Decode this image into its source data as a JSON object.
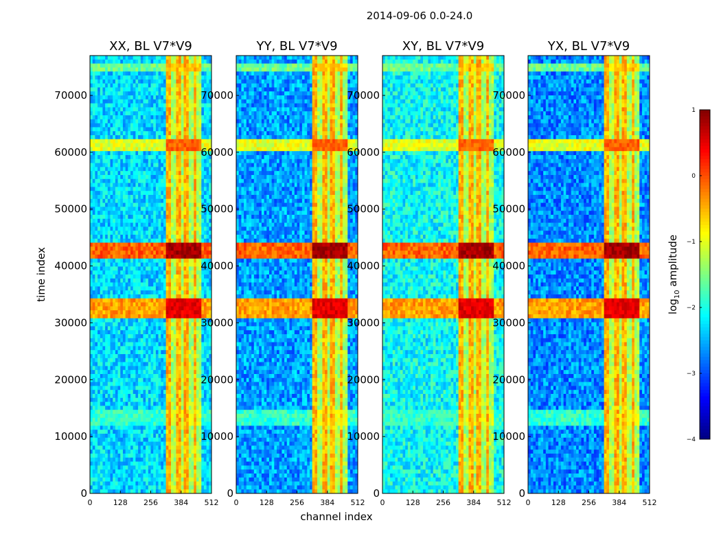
{
  "chart_data": {
    "type": "heatmap",
    "suptitle": "2014-09-06 0.0-24.0",
    "xlabel": "channel index",
    "ylabel": "time index",
    "x_range": [
      0,
      512
    ],
    "y_range": [
      0,
      77000
    ],
    "xticks": [
      0,
      128,
      256,
      384,
      512
    ],
    "yticks": [
      0,
      10000,
      20000,
      30000,
      40000,
      50000,
      60000,
      70000
    ],
    "panels": [
      {
        "title": "XX, BL V7*V9",
        "base_level": -2.3
      },
      {
        "title": "YY, BL V7*V9",
        "base_level": -2.6
      },
      {
        "title": "XY, BL V7*V9",
        "base_level": -2.1
      },
      {
        "title": "YX, BL V7*V9",
        "base_level": -2.7
      }
    ],
    "rfi_channel_band": [
      325,
      470
    ],
    "rfi_time_bands": [
      {
        "range": [
          41500,
          44000
        ],
        "level": 0.5
      },
      {
        "range": [
          31000,
          34000
        ],
        "level": 0.2
      },
      {
        "range": [
          12000,
          15000
        ],
        "level": -1.3
      },
      {
        "range": [
          74500,
          75500
        ],
        "level": -1.0
      },
      {
        "range": [
          60500,
          62500
        ],
        "level": -0.4
      }
    ],
    "colorbar": {
      "label": "log",
      "label_subscript": "10",
      "label_suffix": " amplitude",
      "range": [
        -4,
        1
      ],
      "ticks": [
        "1",
        "0",
        "−1",
        "−2",
        "−3",
        "−4"
      ],
      "colormap": "jet"
    }
  }
}
